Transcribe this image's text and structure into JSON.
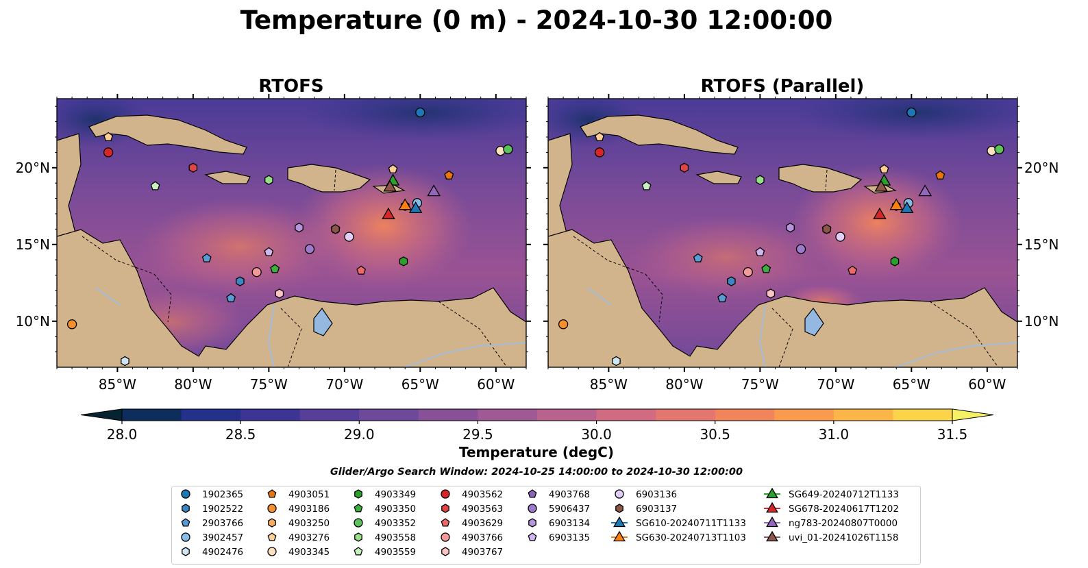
{
  "figure": {
    "title": "Temperature (0 m) - 2024-10-30 12:00:00",
    "panels": [
      {
        "title": "RTOFS"
      },
      {
        "title": "RTOFS (Parallel)"
      }
    ],
    "lon_ticks": [
      "85°W",
      "80°W",
      "75°W",
      "70°W",
      "65°W",
      "60°W"
    ],
    "lat_ticks": [
      "20°N",
      "15°N",
      "10°N"
    ],
    "colorbar": {
      "label": "Temperature (degC)",
      "ticks": [
        "28.0",
        "28.5",
        "29.0",
        "29.5",
        "30.0",
        "30.5",
        "31.0",
        "31.5"
      ],
      "colors": [
        "#072331",
        "#0d2e5c",
        "#24308a",
        "#3c3594",
        "#573f99",
        "#6e4899",
        "#875097",
        "#9f5994",
        "#b8628e",
        "#d06b82",
        "#e3766e",
        "#f2845b",
        "#f99a4f",
        "#fcb547",
        "#fbd449",
        "#f6f064"
      ]
    },
    "search_window": "Glider/Argo Search Window: 2024-10-25 14:00:00 to 2024-10-30 12:00:00"
  },
  "map_extent": {
    "lon": [
      -89,
      -58
    ],
    "lat": [
      7,
      24.5
    ]
  },
  "legend": [
    {
      "label": "1902365",
      "marker": "circle",
      "color": "#1f77b4"
    },
    {
      "label": "1902522",
      "marker": "hexagon",
      "color": "#3d86c1"
    },
    {
      "label": "2903766",
      "marker": "pentagon",
      "color": "#5b9bd5"
    },
    {
      "label": "3902457",
      "marker": "circle",
      "color": "#87bde8"
    },
    {
      "label": "4902476",
      "marker": "hexagon",
      "color": "#cfe6f5"
    },
    {
      "label": "4903051",
      "marker": "pentagon",
      "color": "#e8760c"
    },
    {
      "label": "4903186",
      "marker": "circle",
      "color": "#f5902f"
    },
    {
      "label": "4903250",
      "marker": "hexagon",
      "color": "#fbae62"
    },
    {
      "label": "4903276",
      "marker": "pentagon",
      "color": "#fdcf96"
    },
    {
      "label": "4903345",
      "marker": "circle",
      "color": "#fde2c0"
    },
    {
      "label": "4903349",
      "marker": "hexagon",
      "color": "#2ca02c"
    },
    {
      "label": "4903350",
      "marker": "pentagon",
      "color": "#40ad40"
    },
    {
      "label": "4903352",
      "marker": "circle",
      "color": "#5cc25c"
    },
    {
      "label": "4903558",
      "marker": "hexagon",
      "color": "#98df8a"
    },
    {
      "label": "4903559",
      "marker": "pentagon",
      "color": "#c8f0c0"
    },
    {
      "label": "4903562",
      "marker": "circle",
      "color": "#d62728"
    },
    {
      "label": "4903563",
      "marker": "hexagon",
      "color": "#e04545"
    },
    {
      "label": "4903629",
      "marker": "pentagon",
      "color": "#ee6a6a"
    },
    {
      "label": "4903766",
      "marker": "circle",
      "color": "#f59a9a"
    },
    {
      "label": "4903767",
      "marker": "hexagon",
      "color": "#fbc4c4"
    },
    {
      "label": "4903768",
      "marker": "pentagon",
      "color": "#8c63b8"
    },
    {
      "label": "5906437",
      "marker": "circle",
      "color": "#9d7bcb"
    },
    {
      "label": "6903134",
      "marker": "hexagon",
      "color": "#b596dd"
    },
    {
      "label": "6903135",
      "marker": "pentagon",
      "color": "#d2b6f0"
    },
    {
      "label": "6903136",
      "marker": "circle",
      "color": "#e2cff7"
    },
    {
      "label": "6903137",
      "marker": "hexagon",
      "color": "#8c564b"
    },
    {
      "label": "SG610-20240711T1133",
      "marker": "triangle",
      "color": "#1f77b4"
    },
    {
      "label": "SG630-20240713T1103",
      "marker": "triangle",
      "color": "#ff7f0e"
    },
    {
      "label": "SG649-20240712T1133",
      "marker": "triangle",
      "color": "#2ca02c"
    },
    {
      "label": "SG678-20240617T1202",
      "marker": "triangle",
      "color": "#d62728"
    },
    {
      "label": "ng783-20240807T0000",
      "marker": "triangle",
      "color": "#9467bd"
    },
    {
      "label": "uvi_01-20241026T1158",
      "marker": "triangle",
      "color": "#8c564b"
    }
  ],
  "observations": [
    {
      "label": "1902365",
      "lon": -65.0,
      "lat": 23.6
    },
    {
      "label": "1902522",
      "lon": -76.9,
      "lat": 12.6
    },
    {
      "label": "2903766",
      "lon": -79.1,
      "lat": 14.1
    },
    {
      "label": "3902457",
      "lon": -65.2,
      "lat": 17.7
    },
    {
      "label": "4902476",
      "lon": -84.5,
      "lat": 7.4
    },
    {
      "label": "4903051",
      "lon": -63.1,
      "lat": 19.5
    },
    {
      "label": "4903186",
      "lon": -88.0,
      "lat": 9.8
    },
    {
      "label": "4903250",
      "lon": -66.0,
      "lat": 17.5
    },
    {
      "label": "4903276",
      "lon": -66.8,
      "lat": 19.9
    },
    {
      "label": "4903345",
      "lon": -59.7,
      "lat": 21.1
    },
    {
      "label": "4903349",
      "lon": -66.1,
      "lat": 13.9
    },
    {
      "label": "4903350",
      "lon": -74.6,
      "lat": 13.4
    },
    {
      "label": "4903352",
      "lon": -59.2,
      "lat": 21.2
    },
    {
      "label": "4903558",
      "lon": -75.0,
      "lat": 19.2
    },
    {
      "label": "4903559",
      "lon": -82.5,
      "lat": 18.8
    },
    {
      "label": "4903562",
      "lon": -85.6,
      "lat": 21.0
    },
    {
      "label": "4903563",
      "lon": -80.0,
      "lat": 20.0
    },
    {
      "label": "4903629",
      "lon": -68.9,
      "lat": 13.3
    },
    {
      "label": "4903766",
      "lon": -75.8,
      "lat": 13.2
    },
    {
      "label": "4903767",
      "lon": -74.3,
      "lat": 11.8
    },
    {
      "label": "4903768",
      "lon": -70.6,
      "lat": 16.0
    },
    {
      "label": "5906437",
      "lon": -72.3,
      "lat": 14.7
    },
    {
      "label": "6903134",
      "lon": -73.0,
      "lat": 16.1
    },
    {
      "label": "6903135",
      "lon": -75.0,
      "lat": 14.5
    },
    {
      "label": "6903136",
      "lon": -69.7,
      "lat": 15.5
    },
    {
      "label": "6903137",
      "lon": -70.6,
      "lat": 16.0
    },
    {
      "label": "4903276",
      "lon": -85.6,
      "lat": 22.0
    },
    {
      "label": "2903766",
      "lon": -77.5,
      "lat": 11.5
    },
    {
      "label": "SG610-20240711T1133",
      "lon": -65.3,
      "lat": 17.3
    },
    {
      "label": "SG630-20240713T1103",
      "lon": -66.0,
      "lat": 17.5
    },
    {
      "label": "SG649-20240712T1133",
      "lon": -66.8,
      "lat": 19.1
    },
    {
      "label": "SG678-20240617T1202",
      "lon": -67.1,
      "lat": 16.9
    },
    {
      "label": "ng783-20240807T0000",
      "lon": -64.1,
      "lat": 18.4
    },
    {
      "label": "uvi_01-20241026T1158",
      "lon": -67.0,
      "lat": 18.7
    }
  ]
}
